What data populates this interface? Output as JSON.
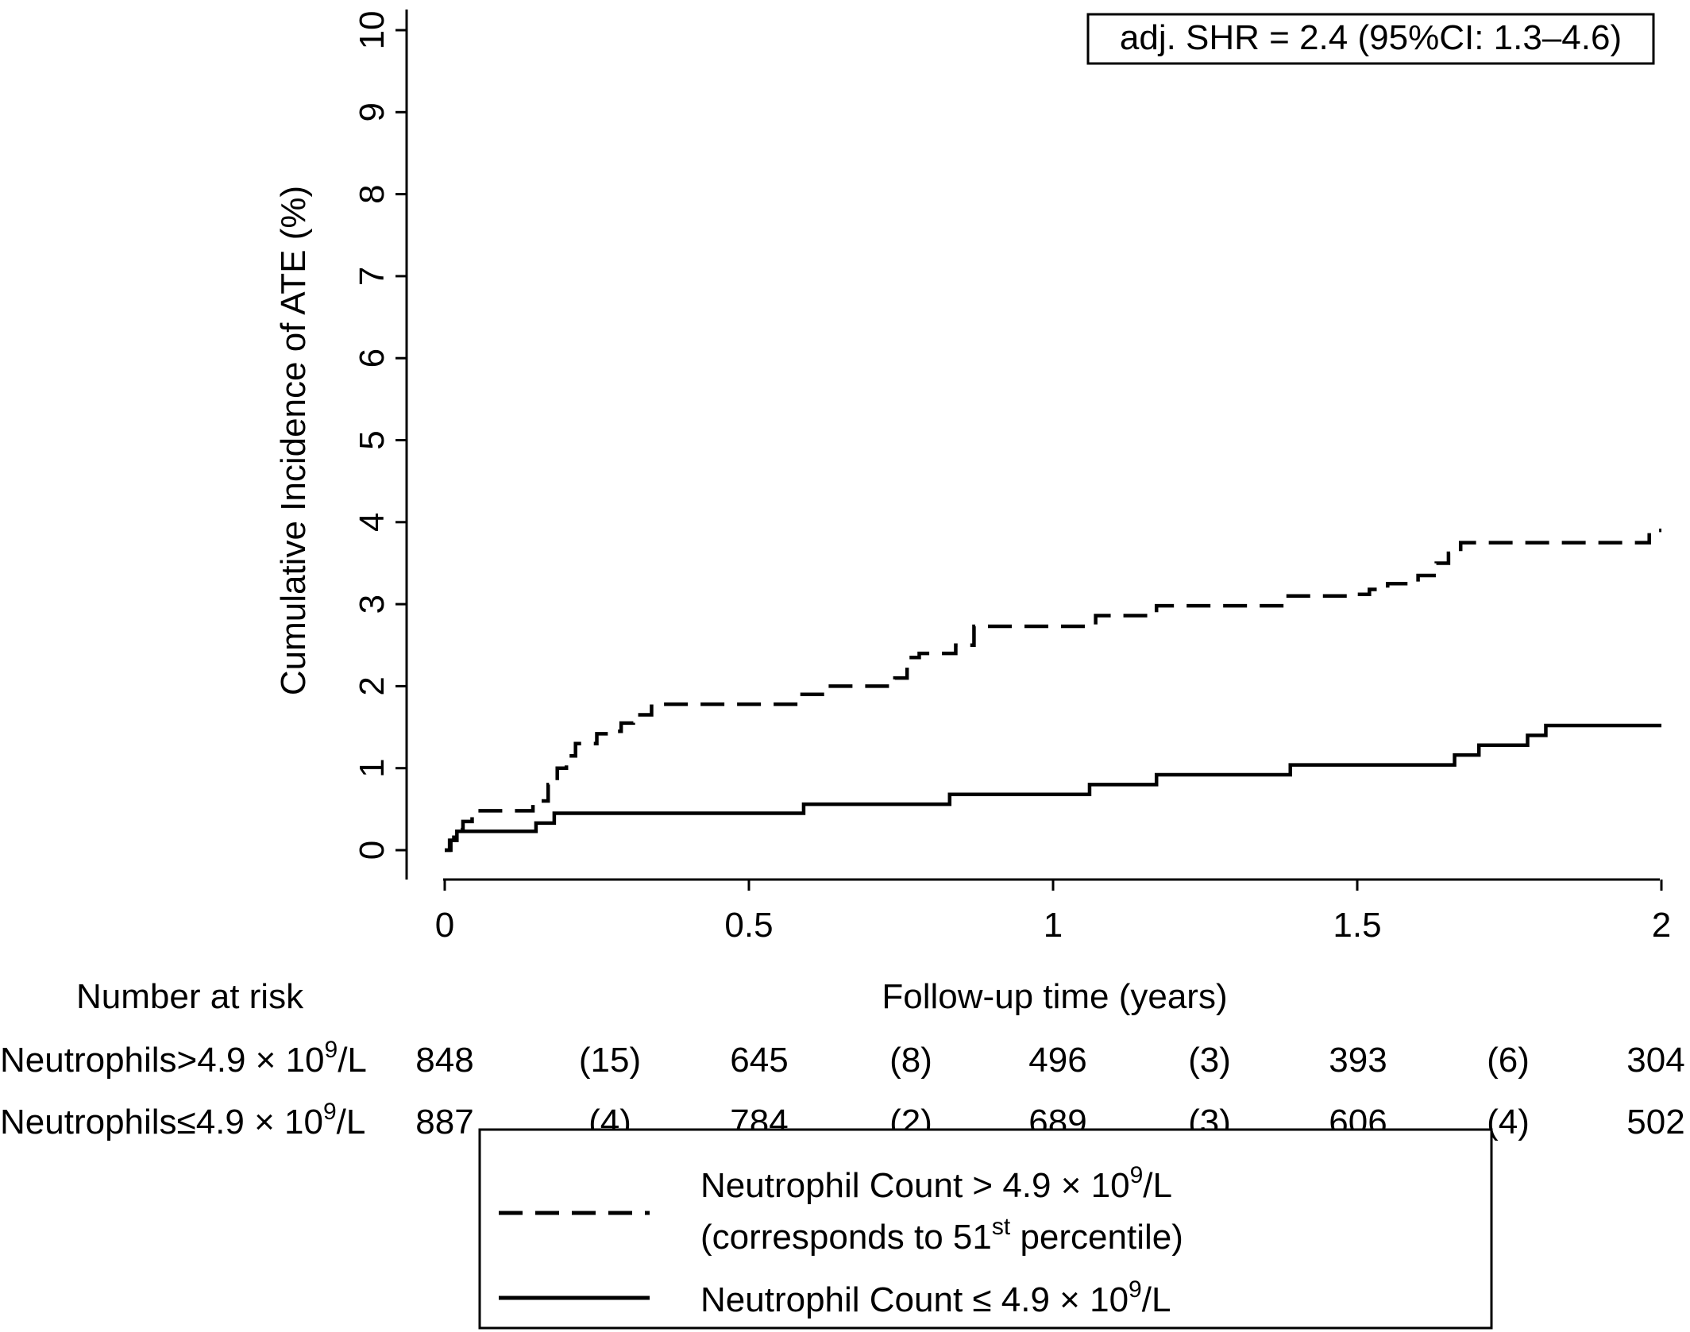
{
  "chart_data": {
    "type": "line",
    "title": "",
    "xlabel": "Follow-up time (years)",
    "ylabel": "Cumulative Incidence of ATE (%)",
    "xlim": [
      0,
      2
    ],
    "ylim": [
      0,
      10
    ],
    "x_ticks": [
      "0",
      "0.5",
      "1",
      "1.5",
      "2"
    ],
    "x_tick_values": [
      0,
      0.5,
      1,
      1.5,
      2
    ],
    "y_ticks": [
      "0",
      "1",
      "2",
      "3",
      "4",
      "5",
      "6",
      "7",
      "8",
      "9",
      "10"
    ],
    "y_tick_values": [
      0,
      1,
      2,
      3,
      4,
      5,
      6,
      7,
      8,
      9,
      10
    ],
    "grid": false,
    "annotation": "adj. SHR = 2.4 (95%CI: 1.3–4.6)",
    "series": [
      {
        "key": "high",
        "style": "dashed",
        "color": "#000000",
        "x": [
          0,
          0.008,
          0.015,
          0.03,
          0.045,
          0.13,
          0.145,
          0.17,
          0.185,
          0.2,
          0.215,
          0.25,
          0.27,
          0.29,
          0.31,
          0.34,
          0.58,
          0.63,
          0.74,
          0.76,
          0.78,
          0.84,
          0.87,
          1.0,
          1.07,
          1.1,
          1.17,
          1.38,
          1.5,
          1.52,
          1.55,
          1.6,
          1.63,
          1.65,
          1.67,
          1.98,
          2.0
        ],
        "y": [
          0,
          0.12,
          0.25,
          0.35,
          0.48,
          0.48,
          0.6,
          0.8,
          1.0,
          1.15,
          1.3,
          1.42,
          1.45,
          1.55,
          1.65,
          1.78,
          1.9,
          2.0,
          2.1,
          2.35,
          2.4,
          2.5,
          2.73,
          2.73,
          2.86,
          2.86,
          2.98,
          3.1,
          3.12,
          3.18,
          3.25,
          3.35,
          3.5,
          3.62,
          3.75,
          3.9,
          3.9
        ]
      },
      {
        "key": "low",
        "style": "solid",
        "color": "#000000",
        "x": [
          0,
          0.01,
          0.02,
          0.15,
          0.18,
          0.59,
          0.83,
          1.06,
          1.17,
          1.39,
          1.66,
          1.7,
          1.78,
          1.81,
          2.0
        ],
        "y": [
          0,
          0.12,
          0.23,
          0.33,
          0.45,
          0.56,
          0.68,
          0.8,
          0.92,
          1.04,
          1.16,
          1.28,
          1.4,
          1.52,
          1.52
        ]
      }
    ]
  },
  "risk_table": {
    "title": "Number at risk",
    "rows": [
      {
        "label_main": "Neutrophils>4.9 × 10",
        "label_sup": "9",
        "label_tail": "/L",
        "values": [
          "848",
          "(15)",
          "645",
          "(8)",
          "496",
          "(3)",
          "393",
          "(6)",
          "304"
        ]
      },
      {
        "label_main": "Neutrophils≤4.9 × 10",
        "label_sup": "9",
        "label_tail": "/L",
        "values": [
          "887",
          "(4)",
          "784",
          "(2)",
          "689",
          "(3)",
          "606",
          "(4)",
          "502"
        ]
      }
    ]
  },
  "legend": {
    "items": [
      {
        "style": "dashed",
        "line1_main": "Neutrophil Count > 4.9 × 10",
        "line1_sup": "9",
        "line1_tail": "/L",
        "line2_main": "(corresponds to 51",
        "line2_sup": "st",
        "line2_tail": " percentile)"
      },
      {
        "style": "solid",
        "line1_main": "Neutrophil Count ≤ 4.9 × 10",
        "line1_sup": "9",
        "line1_tail": "/L"
      }
    ]
  }
}
